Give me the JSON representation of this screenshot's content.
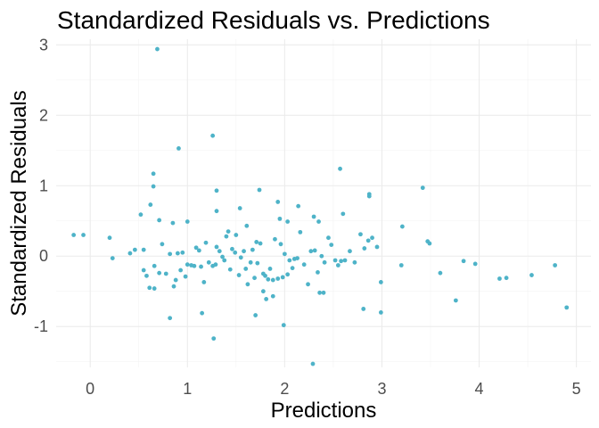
{
  "chart_data": {
    "type": "scatter",
    "title": "Standardized Residuals vs. Predictions",
    "xlabel": "Predictions",
    "ylabel": "Standardized Residuals",
    "xlim": [
      -0.35,
      5.15
    ],
    "ylim": [
      -1.58,
      3.08
    ],
    "x_ticks": [
      0,
      1,
      2,
      3,
      4,
      5
    ],
    "x_tick_labels": [
      "0",
      "1",
      "2",
      "3",
      "4",
      "5"
    ],
    "y_ticks": [
      -1,
      0,
      1,
      2,
      3
    ],
    "y_tick_labels": [
      "-1",
      "0",
      "1",
      "2",
      "3"
    ],
    "grid": true,
    "legend": "none",
    "point_color": "#4eb3c8",
    "series": [
      {
        "points": [
          [
            0.69,
            2.94
          ],
          [
            1.26,
            1.71
          ],
          [
            0.91,
            1.53
          ],
          [
            2.57,
            1.24
          ],
          [
            0.65,
            1.17
          ],
          [
            0.65,
            0.99
          ],
          [
            1.3,
            0.93
          ],
          [
            1.74,
            0.94
          ],
          [
            2.87,
            0.88
          ],
          [
            2.87,
            0.85
          ],
          [
            3.42,
            0.97
          ],
          [
            1.93,
            0.77
          ],
          [
            2.14,
            0.71
          ],
          [
            1.54,
            0.68
          ],
          [
            1.3,
            0.64
          ],
          [
            2.6,
            0.6
          ],
          [
            0.52,
            0.59
          ],
          [
            0.62,
            0.73
          ],
          [
            1.95,
            0.53
          ],
          [
            2.3,
            0.56
          ],
          [
            2.35,
            0.49
          ],
          [
            0.71,
            0.51
          ],
          [
            1.0,
            0.49
          ],
          [
            0.85,
            0.47
          ],
          [
            1.61,
            0.43
          ],
          [
            2.03,
            0.49
          ],
          [
            3.21,
            0.42
          ],
          [
            3.47,
            0.21
          ],
          [
            3.49,
            0.18
          ],
          [
            -0.17,
            0.3
          ],
          [
            -0.07,
            0.3
          ],
          [
            0.2,
            0.26
          ],
          [
            0.23,
            -0.03
          ],
          [
            0.41,
            0.04
          ],
          [
            0.46,
            0.09
          ],
          [
            0.55,
            0.09
          ],
          [
            0.55,
            -0.2
          ],
          [
            0.58,
            -0.28
          ],
          [
            0.61,
            -0.45
          ],
          [
            0.66,
            -0.46
          ],
          [
            0.66,
            -0.14
          ],
          [
            0.71,
            -0.24
          ],
          [
            0.74,
            0.17
          ],
          [
            0.78,
            -0.25
          ],
          [
            0.82,
            0.03
          ],
          [
            0.86,
            -0.43
          ],
          [
            0.88,
            -0.34
          ],
          [
            0.9,
            0.04
          ],
          [
            0.93,
            -0.2
          ],
          [
            0.95,
            0.05
          ],
          [
            0.98,
            -0.29
          ],
          [
            1.0,
            -0.12
          ],
          [
            1.04,
            -0.13
          ],
          [
            1.07,
            -0.14
          ],
          [
            1.09,
            0.12
          ],
          [
            1.12,
            0.08
          ],
          [
            1.14,
            -0.15
          ],
          [
            1.17,
            -0.37
          ],
          [
            1.19,
            0.19
          ],
          [
            1.22,
            -0.09
          ],
          [
            1.26,
            -0.14
          ],
          [
            1.29,
            -0.12
          ],
          [
            1.3,
            0.13
          ],
          [
            1.33,
            0.07
          ],
          [
            1.36,
            -0.01
          ],
          [
            1.38,
            -0.06
          ],
          [
            1.4,
            0.28
          ],
          [
            1.42,
            0.35
          ],
          [
            1.44,
            -0.19
          ],
          [
            1.46,
            0.1
          ],
          [
            1.49,
            0.05
          ],
          [
            1.5,
            0.3
          ],
          [
            1.53,
            -0.27
          ],
          [
            1.55,
            -0.02
          ],
          [
            1.58,
            0.07
          ],
          [
            1.6,
            -0.18
          ],
          [
            1.62,
            -0.4
          ],
          [
            1.65,
            -0.09
          ],
          [
            1.67,
            0.09
          ],
          [
            1.69,
            -0.31
          ],
          [
            1.71,
            0.2
          ],
          [
            1.72,
            -0.1
          ],
          [
            1.75,
            0.18
          ],
          [
            1.78,
            -0.25
          ],
          [
            1.8,
            -0.28
          ],
          [
            1.83,
            -0.33
          ],
          [
            1.85,
            -0.18
          ],
          [
            1.88,
            -0.34
          ],
          [
            1.9,
            0.24
          ],
          [
            1.93,
            -0.32
          ],
          [
            1.96,
            0.17
          ],
          [
            1.98,
            -0.3
          ],
          [
            2.0,
            0.03
          ],
          [
            2.03,
            -0.26
          ],
          [
            2.05,
            -0.06
          ],
          [
            2.08,
            -0.17
          ],
          [
            2.1,
            -0.04
          ],
          [
            2.13,
            -0.03
          ],
          [
            2.16,
            0.34
          ],
          [
            2.2,
            -0.12
          ],
          [
            2.24,
            -0.4
          ],
          [
            2.27,
            0.07
          ],
          [
            2.31,
            0.08
          ],
          [
            2.34,
            -0.23
          ],
          [
            2.38,
            0.0
          ],
          [
            2.41,
            -0.09
          ],
          [
            2.45,
            0.26
          ],
          [
            2.48,
            0.16
          ],
          [
            2.52,
            -0.06
          ],
          [
            2.55,
            -0.13
          ],
          [
            2.58,
            -0.07
          ],
          [
            2.62,
            -0.06
          ],
          [
            2.67,
            0.07
          ],
          [
            2.72,
            -0.09
          ],
          [
            2.78,
            0.31
          ],
          [
            2.82,
            0.11
          ],
          [
            2.86,
            0.22
          ],
          [
            2.9,
            0.26
          ],
          [
            2.95,
            0.13
          ],
          [
            2.99,
            -0.37
          ],
          [
            0.82,
            -0.88
          ],
          [
            1.15,
            -0.81
          ],
          [
            1.27,
            -1.17
          ],
          [
            1.81,
            -0.61
          ],
          [
            1.78,
            -0.5
          ],
          [
            1.88,
            -0.57
          ],
          [
            1.99,
            -0.98
          ],
          [
            2.29,
            -1.53
          ],
          [
            2.36,
            -0.52
          ],
          [
            2.4,
            -0.52
          ],
          [
            2.81,
            -0.75
          ],
          [
            2.99,
            -0.8
          ],
          [
            1.7,
            -0.84
          ],
          [
            3.2,
            -0.13
          ],
          [
            3.6,
            -0.24
          ],
          [
            3.76,
            -0.63
          ],
          [
            3.84,
            -0.07
          ],
          [
            3.96,
            -0.11
          ],
          [
            4.21,
            -0.32
          ],
          [
            4.28,
            -0.31
          ],
          [
            4.54,
            -0.27
          ],
          [
            4.78,
            -0.13
          ],
          [
            4.9,
            -0.73
          ]
        ]
      }
    ]
  }
}
